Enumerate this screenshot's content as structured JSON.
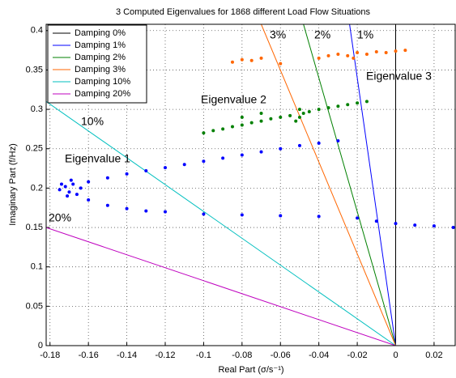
{
  "chart_data": {
    "type": "line",
    "title": "3 Computed Eigenvalues for 1868 different Load Flow Situations",
    "xlabel": "Real Part (σ/s⁻¹)",
    "ylabel": "Imaginary Part (f/Hz)",
    "xlim": [
      -0.182,
      0.031
    ],
    "ylim": [
      0,
      0.408
    ],
    "xticks": [
      -0.18,
      -0.16,
      -0.14,
      -0.12,
      -0.1,
      -0.08,
      -0.06,
      -0.04,
      -0.02,
      0,
      0.02
    ],
    "yticks": [
      0,
      0.05,
      0.1,
      0.15,
      0.2,
      0.25,
      0.3,
      0.35,
      0.4
    ],
    "grid": true,
    "legend": "upper left",
    "series": [
      {
        "name": "Damping 0%",
        "color": "#000000",
        "x": [
          0,
          0
        ],
        "values": [
          0,
          0.408
        ]
      },
      {
        "name": "Damping 1%",
        "color": "#0000ff",
        "x": [
          -0.024,
          0
        ],
        "values": [
          0.408,
          0
        ]
      },
      {
        "name": "Damping 2%",
        "color": "#008000",
        "x": [
          -0.048,
          0
        ],
        "values": [
          0.408,
          0
        ]
      },
      {
        "name": "Damping 3%",
        "color": "#ff6600",
        "x": [
          -0.07,
          0
        ],
        "values": [
          0.408,
          0
        ]
      },
      {
        "name": "Damping 10%",
        "color": "#00bfbf",
        "x": [
          -0.182,
          0
        ],
        "values": [
          0.31,
          0
        ]
      },
      {
        "name": "Damping 20%",
        "color": "#bf00bf",
        "x": [
          -0.182,
          0
        ],
        "values": [
          0.15,
          0
        ]
      }
    ],
    "scatter": [
      {
        "color": "#0000ff",
        "x": [
          -0.175,
          -0.172,
          -0.17,
          -0.168,
          -0.166,
          -0.171,
          -0.164,
          -0.174,
          -0.169,
          -0.16,
          -0.15,
          -0.14,
          -0.13,
          -0.12,
          -0.11,
          -0.1,
          -0.09,
          -0.08,
          -0.07,
          -0.06,
          -0.05,
          -0.04,
          -0.03,
          -0.16,
          -0.15,
          -0.14,
          -0.13,
          -0.12,
          -0.1,
          -0.08,
          -0.06,
          -0.04,
          -0.02,
          -0.01,
          0,
          0.01,
          0.02,
          0.03
        ],
        "values": [
          0.198,
          0.202,
          0.195,
          0.205,
          0.192,
          0.19,
          0.2,
          0.205,
          0.21,
          0.208,
          0.213,
          0.218,
          0.222,
          0.226,
          0.23,
          0.234,
          0.238,
          0.242,
          0.246,
          0.25,
          0.254,
          0.257,
          0.26,
          0.185,
          0.178,
          0.174,
          0.171,
          0.17,
          0.167,
          0.166,
          0.165,
          0.164,
          0.162,
          0.158,
          0.155,
          0.153,
          0.152,
          0.15
        ]
      },
      {
        "color": "#008000",
        "x": [
          -0.1,
          -0.095,
          -0.09,
          -0.085,
          -0.08,
          -0.075,
          -0.07,
          -0.065,
          -0.06,
          -0.055,
          -0.05,
          -0.05,
          -0.052,
          -0.048,
          -0.045,
          -0.04,
          -0.035,
          -0.03,
          -0.025,
          -0.02,
          -0.015,
          -0.08,
          -0.07
        ],
        "values": [
          0.27,
          0.273,
          0.275,
          0.278,
          0.28,
          0.283,
          0.285,
          0.288,
          0.29,
          0.292,
          0.29,
          0.3,
          0.285,
          0.295,
          0.297,
          0.3,
          0.302,
          0.304,
          0.306,
          0.308,
          0.31,
          0.29,
          0.295
        ]
      },
      {
        "color": "#ff6600",
        "x": [
          -0.085,
          -0.08,
          -0.075,
          -0.07,
          -0.06,
          -0.04,
          -0.035,
          -0.03,
          -0.025,
          -0.02,
          -0.015,
          -0.01,
          -0.005,
          0,
          0.005,
          -0.022
        ],
        "values": [
          0.36,
          0.363,
          0.362,
          0.365,
          0.358,
          0.365,
          0.368,
          0.37,
          0.368,
          0.372,
          0.37,
          0.373,
          0.372,
          0.374,
          0.375,
          0.365
        ]
      }
    ],
    "annotations": [
      "10%",
      "20%",
      "3%",
      "2%",
      "1%",
      "Eigenvalue 1",
      "Eigenvalue 2",
      "Eigenvalue 3"
    ]
  }
}
